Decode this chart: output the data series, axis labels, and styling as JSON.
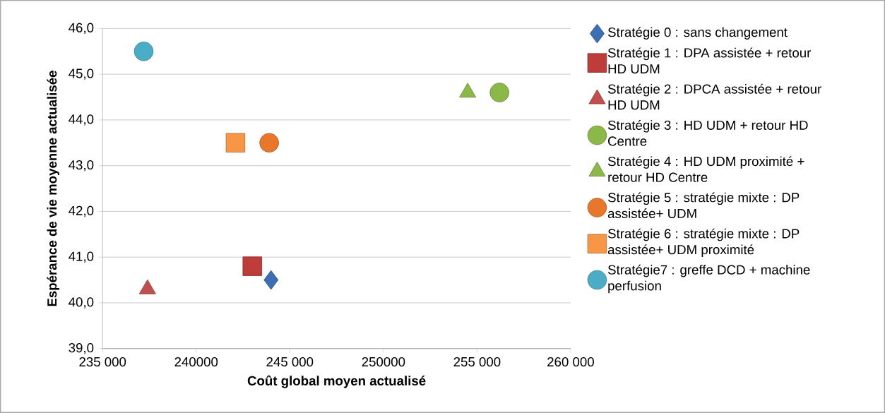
{
  "chart_data": {
    "type": "scatter",
    "xlabel": "Coût global moyen actualisé",
    "ylabel": "Espérance de vie moyenne actualisée",
    "xlim": [
      235000,
      260000
    ],
    "xticks": [
      {
        "value": 235000,
        "label": "235 000"
      },
      {
        "value": 240000,
        "label": "240000"
      },
      {
        "value": 245000,
        "label": "245 000"
      },
      {
        "value": 250000,
        "label": "250000"
      },
      {
        "value": 255000,
        "label": "255 000"
      },
      {
        "value": 260000,
        "label": "260 000"
      }
    ],
    "ylim": [
      39,
      46
    ],
    "yticks": [
      {
        "value": 39,
        "label": "39,0"
      },
      {
        "value": 40,
        "label": "40,0"
      },
      {
        "value": 41,
        "label": "41,0"
      },
      {
        "value": 42,
        "label": "42,0"
      },
      {
        "value": 43,
        "label": "43,0"
      },
      {
        "value": 44,
        "label": "44,0"
      },
      {
        "value": 45,
        "label": "45,0"
      },
      {
        "value": 46,
        "label": "46,0"
      }
    ],
    "grid": "y",
    "legend": "right",
    "series": [
      {
        "name": "Stratégie 0 : sans changement",
        "color": "#3d6eb4",
        "marker": "diamond",
        "x": [
          244000
        ],
        "values": [
          40.5
        ]
      },
      {
        "name": "Stratégie 1 : DPA assistée + retour HD UDM",
        "color": "#be3c3a",
        "marker": "square",
        "x": [
          243000
        ],
        "values": [
          40.8
        ]
      },
      {
        "name": "Stratégie 2 : DPCA assistée + retour HD UDM",
        "color": "#c0504d",
        "marker": "triangle",
        "x": [
          237400
        ],
        "values": [
          40.3
        ]
      },
      {
        "name": "Stratégie 3 : HD UDM + retour HD Centre",
        "color": "#8cb84a",
        "marker": "circle",
        "x": [
          256200
        ],
        "values": [
          44.6
        ]
      },
      {
        "name": "Stratégie 4 :  HD UDM proximité + retour HD Centre",
        "color": "#8cb84a",
        "marker": "triangle",
        "x": [
          254500
        ],
        "values": [
          44.6
        ]
      },
      {
        "name": "Stratégie  5 : stratégie mixte : DP assistée+ UDM",
        "color": "#e8762b",
        "marker": "circle",
        "x": [
          243900
        ],
        "values": [
          43.5
        ]
      },
      {
        "name": "Stratégie  6 : stratégie mixte : DP assistée+ UDM proximité",
        "color": "#f79646",
        "marker": "square",
        "x": [
          242100
        ],
        "values": [
          43.5
        ]
      },
      {
        "name": "Stratégie7 : greffe DCD + machine perfusion",
        "color": "#4bacc6",
        "marker": "circle",
        "x": [
          237200
        ],
        "values": [
          45.5
        ]
      }
    ]
  }
}
